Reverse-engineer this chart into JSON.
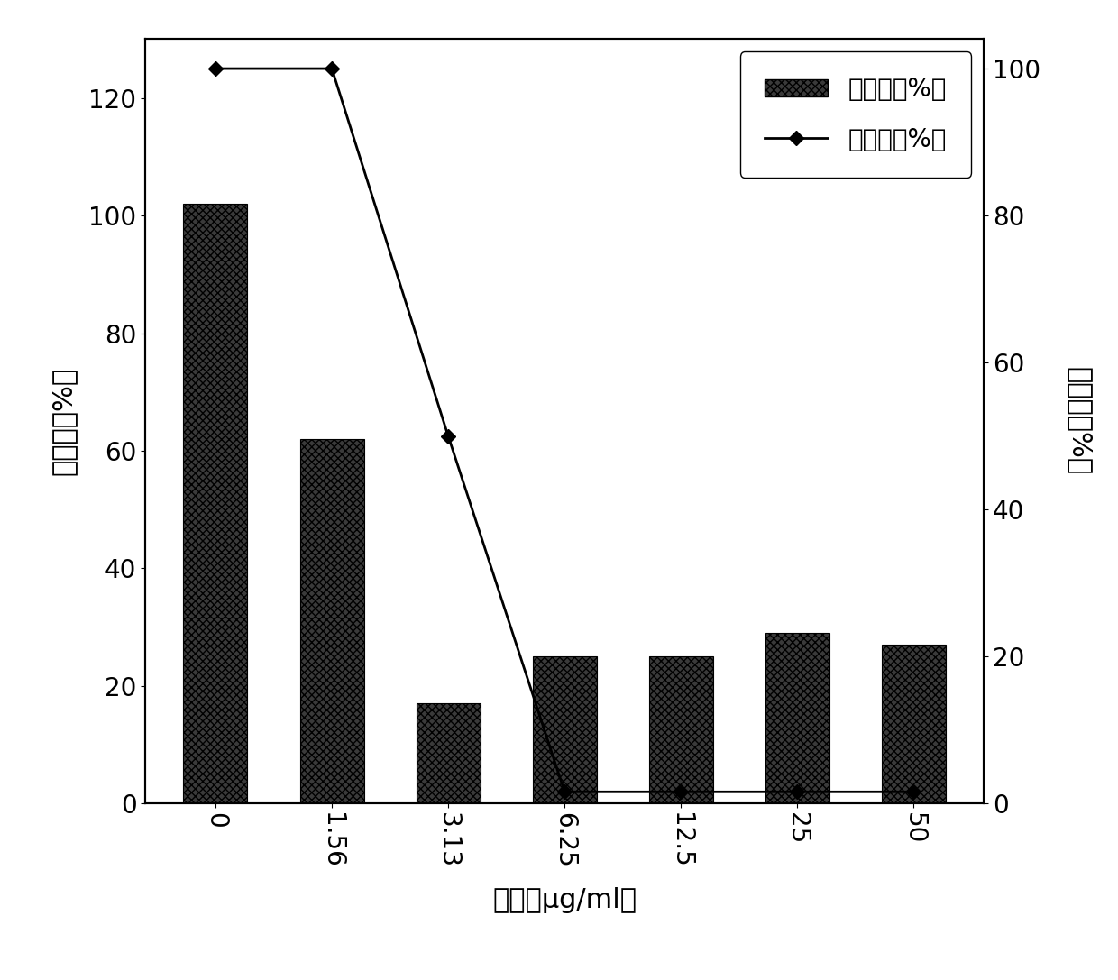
{
  "categories": [
    "0",
    "1.56",
    "3.13",
    "6.25",
    "12.5",
    "25",
    "50"
  ],
  "bar_values": [
    102,
    62,
    17,
    25,
    25,
    29,
    27
  ],
  "line_values_right": [
    100,
    100,
    50,
    1.6,
    1.6,
    1.6,
    1.6
  ],
  "bar_color": "#3a3a3a",
  "bar_hatch": "xxxx",
  "line_color": "#000000",
  "marker": "D",
  "marker_size": 8,
  "left_ylabel": "粘附率（%）",
  "right_ylabel": "生长率（%）",
  "xlabel": "浓度（μg/ml）",
  "left_ylim": [
    0,
    130
  ],
  "right_ylim": [
    0,
    104
  ],
  "left_yticks": [
    0,
    20,
    40,
    60,
    80,
    100,
    120
  ],
  "right_yticks": [
    0,
    20,
    40,
    60,
    80,
    100
  ],
  "legend_bar_label": "粘附性（%）",
  "legend_line_label": "生长率（%）",
  "background_color": "#ffffff",
  "figure_bgcolor": "#ffffff",
  "tick_fontsize": 20,
  "label_fontsize": 22,
  "legend_fontsize": 20
}
